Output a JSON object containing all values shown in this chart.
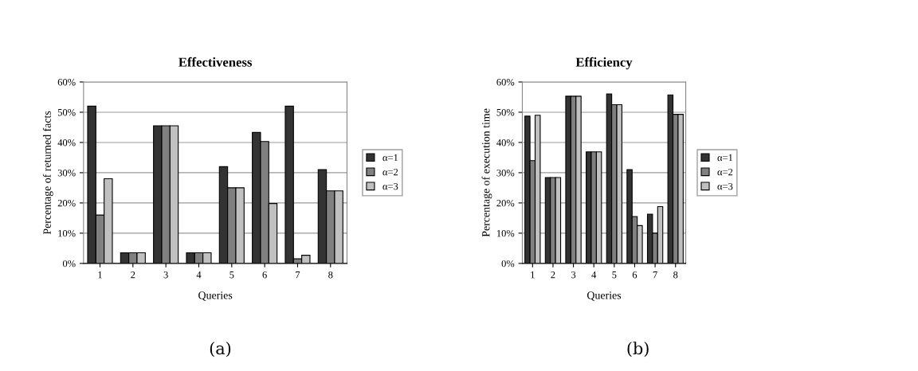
{
  "chart_data": [
    {
      "type": "bar",
      "title": "Effectiveness",
      "xlabel": "Queries",
      "ylabel": "Percentage of returned facts",
      "categories": [
        "1",
        "2",
        "3",
        "4",
        "5",
        "6",
        "7",
        "8"
      ],
      "series": [
        {
          "name": "α=1",
          "color": "#333333",
          "values": [
            52,
            3.5,
            45.5,
            3.5,
            32,
            43.3,
            52,
            31
          ]
        },
        {
          "name": "α=2",
          "color": "#808080",
          "values": [
            16,
            3.5,
            45.5,
            3.5,
            25,
            40.3,
            1.5,
            24
          ]
        },
        {
          "name": "α=3",
          "color": "#c0c0c0",
          "values": [
            28,
            3.5,
            45.5,
            3.5,
            25,
            19.8,
            2.7,
            24
          ]
        }
      ],
      "ylim": [
        0,
        60
      ],
      "yticks": [
        {
          "value": 0,
          "label": "0%"
        },
        {
          "value": 10,
          "label": "10%"
        },
        {
          "value": 20,
          "label": "20%"
        },
        {
          "value": 30,
          "label": "30%"
        },
        {
          "value": 40,
          "label": "40%"
        },
        {
          "value": 50,
          "label": "50%"
        },
        {
          "value": 60,
          "label": "60%"
        }
      ],
      "grid": "y",
      "legend": "right",
      "annotations": [
        "(a)"
      ]
    },
    {
      "type": "bar",
      "title": "Efficiency",
      "xlabel": "Queries",
      "ylabel": "Percentage of execution time",
      "categories": [
        "1",
        "2",
        "3",
        "4",
        "5",
        "6",
        "7",
        "8"
      ],
      "series": [
        {
          "name": "α=1",
          "color": "#333333",
          "values": [
            48.7,
            28.4,
            55.3,
            36.9,
            56,
            31,
            16.3,
            55.7
          ]
        },
        {
          "name": "α=2",
          "color": "#808080",
          "values": [
            34,
            28.4,
            55.3,
            36.9,
            52.5,
            15.5,
            10,
            49.3
          ]
        },
        {
          "name": "α=3",
          "color": "#c0c0c0",
          "values": [
            49,
            28.4,
            55.3,
            36.9,
            52.5,
            12.5,
            18.8,
            49.3
          ]
        }
      ],
      "ylim": [
        0,
        60
      ],
      "yticks": [
        {
          "value": 0,
          "label": "0%"
        },
        {
          "value": 10,
          "label": "10%"
        },
        {
          "value": 20,
          "label": "20%"
        },
        {
          "value": 30,
          "label": "30%"
        },
        {
          "value": 40,
          "label": "40%"
        },
        {
          "value": 50,
          "label": "50%"
        },
        {
          "value": 60,
          "label": "60%"
        }
      ],
      "grid": "y",
      "legend": "right",
      "annotations": [
        "(b)"
      ]
    }
  ]
}
